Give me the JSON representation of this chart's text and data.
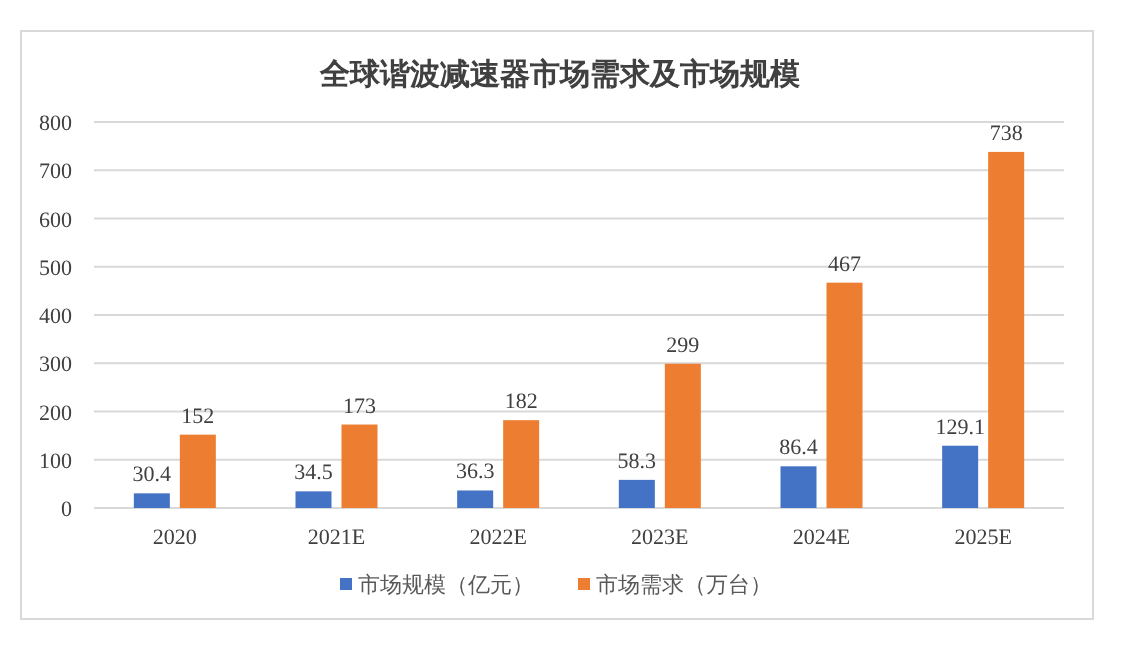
{
  "chart_data": {
    "type": "bar",
    "title": "全球谐波减速器市场需求及市场规模",
    "categories": [
      "2020",
      "2021E",
      "2022E",
      "2023E",
      "2024E",
      "2025E"
    ],
    "series": [
      {
        "name": "市场规模（亿元）",
        "color": "#4472c4",
        "values": [
          30.4,
          34.5,
          36.3,
          58.3,
          86.4,
          129.1
        ]
      },
      {
        "name": "市场需求（万台）",
        "color": "#ed7d31",
        "values": [
          152,
          173,
          182,
          299,
          467,
          738
        ]
      }
    ],
    "ylim": [
      0,
      800
    ],
    "yticks": [
      0,
      100,
      200,
      300,
      400,
      500,
      600,
      700,
      800
    ],
    "grid": "y",
    "legend": "bottom",
    "data_labels": true
  }
}
